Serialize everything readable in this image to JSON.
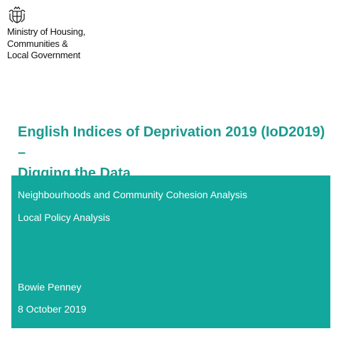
{
  "logo": {
    "lines": [
      "Ministry of Housing,",
      "Communities &",
      "Local Government"
    ]
  },
  "title": {
    "lines": [
      "English Indices of Deprivation 2019 (IoD2019) –",
      "Digging the Data"
    ]
  },
  "panel": {
    "units": [
      "Neighbourhoods and Community Cohesion Analysis",
      "Local Policy Analysis"
    ],
    "author": "Bowie Penney",
    "date": "8 October 2019"
  }
}
